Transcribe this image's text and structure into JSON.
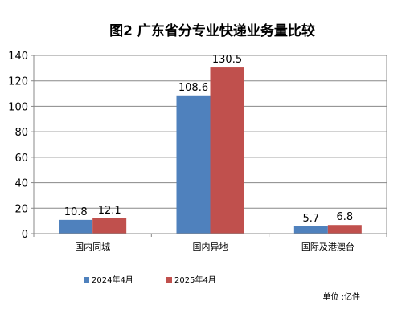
{
  "chart_data": {
    "type": "bar",
    "title": "图2  广东省分专业快递业务量比较",
    "categories": [
      "国内同城",
      "国内异地",
      "国际及港澳台"
    ],
    "series": [
      {
        "name": "2024年4月",
        "values": [
          10.8,
          108.6,
          5.7
        ],
        "labels": [
          "10.8",
          "108.6",
          "5.7"
        ],
        "color": "#4F81BD"
      },
      {
        "name": "2025年4月",
        "values": [
          12.1,
          130.5,
          6.8
        ],
        "labels": [
          "12.1",
          "130.5",
          "6.8"
        ],
        "color": "#C0504D"
      }
    ],
    "ylim": [
      0,
      140
    ],
    "yticks": [
      0,
      20,
      40,
      60,
      80,
      100,
      120,
      140
    ],
    "ytick_labels": [
      "0",
      "20",
      "40",
      "60",
      "80",
      "100",
      "120",
      "140"
    ],
    "grid": true,
    "legend_position": "bottom",
    "unit_note": "单位 :亿件"
  }
}
